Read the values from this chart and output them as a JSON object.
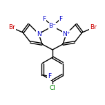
{
  "bg_color": "#ffffff",
  "line_color": "#000000",
  "atom_colors": {
    "Br": "#cc0000",
    "N": "#0000cc",
    "B": "#0000cc",
    "F": "#0000cc",
    "Cl": "#008800",
    "C": "#000000"
  },
  "figsize": [
    1.52,
    1.52
  ],
  "dpi": 100,
  "lw": 1.0
}
